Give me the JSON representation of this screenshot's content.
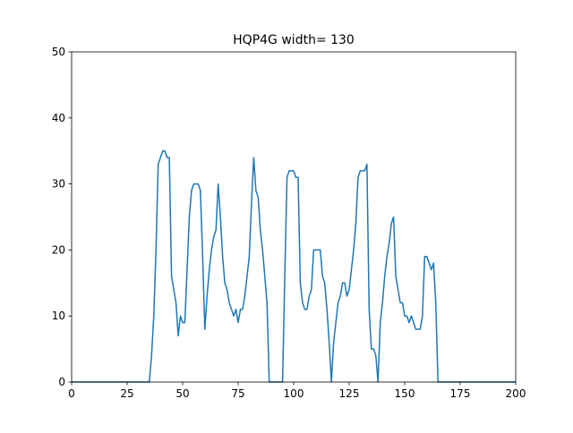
{
  "chart_data": {
    "type": "line",
    "title": "HQP4G width= 130",
    "x": [
      0,
      35,
      36,
      37,
      38,
      39,
      40,
      41,
      42,
      43,
      44,
      45,
      46,
      47,
      48,
      49,
      50,
      51,
      52,
      53,
      54,
      55,
      56,
      57,
      58,
      59,
      60,
      61,
      62,
      63,
      64,
      65,
      66,
      67,
      68,
      69,
      70,
      71,
      72,
      73,
      74,
      75,
      76,
      77,
      78,
      79,
      80,
      81,
      82,
      83,
      84,
      85,
      86,
      87,
      88,
      89,
      95,
      96,
      97,
      98,
      99,
      100,
      101,
      102,
      103,
      104,
      105,
      106,
      107,
      108,
      109,
      110,
      111,
      112,
      113,
      114,
      115,
      116,
      117,
      118,
      119,
      120,
      121,
      122,
      123,
      124,
      125,
      126,
      127,
      128,
      129,
      130,
      131,
      132,
      133,
      134,
      135,
      136,
      137,
      138,
      139,
      140,
      141,
      142,
      143,
      144,
      145,
      146,
      147,
      148,
      149,
      150,
      151,
      152,
      153,
      154,
      155,
      156,
      157,
      158,
      159,
      160,
      161,
      162,
      163,
      164,
      165,
      200
    ],
    "series": [
      {
        "color": "#1f77b4",
        "values": [
          0,
          0,
          4,
          10,
          20,
          33,
          34,
          35,
          35,
          34,
          34,
          16,
          14,
          12,
          7,
          10,
          9,
          9,
          17,
          25,
          29,
          30,
          30,
          30,
          29,
          19,
          8,
          13,
          17,
          20,
          22,
          23,
          30,
          25,
          19,
          15,
          14,
          12,
          11,
          10,
          11,
          9,
          11,
          11,
          13,
          16,
          19,
          27,
          34,
          29,
          28,
          23,
          20,
          16,
          12,
          0,
          0,
          16,
          31,
          32,
          32,
          32,
          31,
          31,
          15,
          12,
          11,
          11,
          13,
          14,
          20,
          20,
          20,
          20,
          16,
          15,
          11,
          6,
          0,
          6,
          9,
          12,
          13,
          15,
          15,
          13,
          14,
          17,
          20,
          24,
          31,
          32,
          32,
          32,
          33,
          11,
          5,
          5,
          4,
          0,
          9,
          12,
          16,
          19,
          21,
          24,
          25,
          16,
          14,
          12,
          12,
          10,
          10,
          9,
          10,
          9,
          8,
          8,
          8,
          10,
          19,
          19,
          18,
          17,
          18,
          12,
          0,
          0
        ]
      }
    ],
    "xlim": [
      0,
      200
    ],
    "xticks": [
      0,
      25,
      50,
      75,
      100,
      125,
      150,
      175,
      200
    ],
    "ylim": [
      0,
      50
    ],
    "yticks": [
      0,
      10,
      20,
      30,
      40,
      50
    ]
  }
}
